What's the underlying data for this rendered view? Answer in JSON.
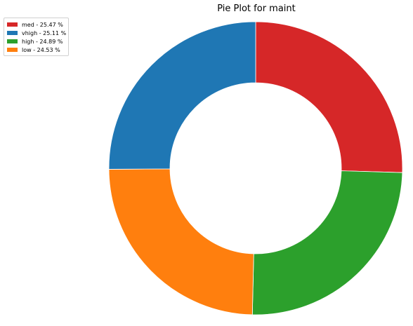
{
  "chart_data": {
    "type": "pie",
    "title": "Pie Plot for maint",
    "donut": true,
    "start_angle_deg": 90,
    "direction": "clockwise",
    "legend_placement": "upper-left",
    "slices": [
      {
        "label": "med",
        "value": 25.47,
        "color": "#d62728",
        "legend_text": "med - 25.47 %"
      },
      {
        "label": "high",
        "value": 24.89,
        "color": "#2ca02c",
        "legend_text": "high - 24.89 %"
      },
      {
        "label": "low",
        "value": 24.53,
        "color": "#ff7f0e",
        "legend_text": "low - 24.53 %"
      },
      {
        "label": "vhigh",
        "value": 25.11,
        "color": "#1f77b4",
        "legend_text": "vhigh - 25.11 %"
      }
    ],
    "legend_order": [
      "med",
      "vhigh",
      "high",
      "low"
    ]
  }
}
